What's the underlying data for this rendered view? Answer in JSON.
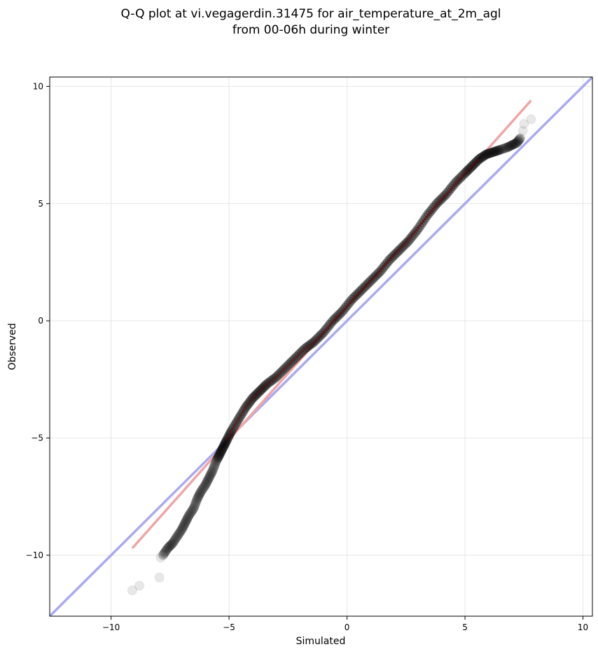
{
  "chart_data": {
    "type": "scatter",
    "title_lines": [
      "Q-Q plot at vi.vegagerdin.31475 for air_temperature_at_2m_agl",
      "from 00-06h during winter"
    ],
    "xlabel": "Simulated",
    "ylabel": "Observed",
    "xlim": [
      -12.6,
      10.4
    ],
    "ylim": [
      -12.6,
      10.4
    ],
    "xticks": [
      -10,
      -5,
      0,
      5,
      10
    ],
    "yticks": [
      -10,
      -5,
      0,
      5,
      10
    ],
    "tick_labels": [
      "−10",
      "−5",
      "0",
      "5",
      "10"
    ],
    "grid": true,
    "colors": {
      "points": "#000000",
      "identity_line": "#aaaaee",
      "fit_line": "#f0a5a5",
      "central_line": "#8b0000"
    },
    "identity_line": {
      "x": [
        -12.6,
        10.4
      ],
      "y": [
        -12.6,
        10.4
      ]
    },
    "fit_line": {
      "x": [
        -9.1,
        7.8
      ],
      "y": [
        -9.7,
        9.4
      ]
    },
    "quantile_points": {
      "x": [
        -9.1,
        -8.8,
        -7.95,
        -7.9,
        -7.8,
        -7.6,
        -7.4,
        -7.2,
        -7.0,
        -6.85,
        -6.7,
        -6.5,
        -6.35,
        -6.2,
        -6.0,
        -5.85,
        -5.7,
        -5.55,
        -5.4,
        -5.25,
        -5.1,
        -4.9,
        -4.6,
        -4.3,
        -4.0,
        -3.7,
        -3.4,
        -3.0,
        -2.6,
        -2.2,
        -1.8,
        -1.4,
        -1.0,
        -0.6,
        -0.2,
        0.2,
        0.6,
        1.0,
        1.4,
        1.8,
        2.2,
        2.6,
        3.0,
        3.4,
        3.8,
        4.2,
        4.6,
        5.0,
        5.3,
        5.6,
        5.9,
        6.2,
        6.5,
        6.8,
        7.0,
        7.2,
        7.35,
        7.45,
        7.5,
        7.8
      ],
      "y": [
        -11.5,
        -11.3,
        -10.95,
        -10.1,
        -10.0,
        -9.7,
        -9.5,
        -9.2,
        -8.9,
        -8.6,
        -8.3,
        -8.0,
        -7.6,
        -7.3,
        -7.0,
        -6.7,
        -6.4,
        -6.0,
        -5.7,
        -5.4,
        -5.1,
        -4.7,
        -4.2,
        -3.7,
        -3.3,
        -3.0,
        -2.7,
        -2.4,
        -2.0,
        -1.6,
        -1.2,
        -0.9,
        -0.5,
        0.0,
        0.4,
        0.9,
        1.3,
        1.7,
        2.1,
        2.6,
        3.0,
        3.4,
        3.9,
        4.5,
        5.0,
        5.4,
        5.9,
        6.3,
        6.6,
        6.9,
        7.1,
        7.2,
        7.3,
        7.4,
        7.5,
        7.6,
        7.8,
        8.1,
        8.4,
        8.6
      ]
    }
  }
}
